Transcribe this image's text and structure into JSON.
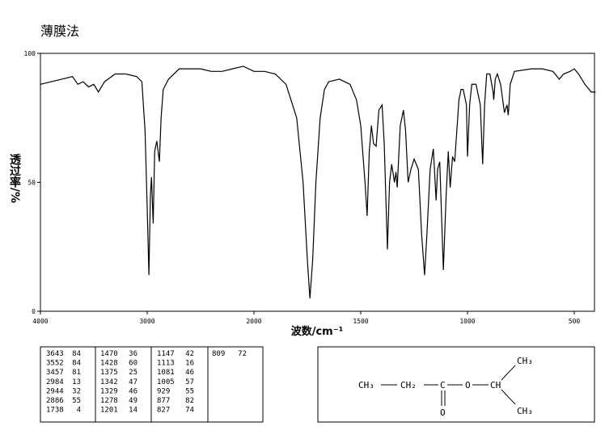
{
  "chart_data": {
    "type": "line",
    "title": "薄膜法",
    "x_label": "波数/cm⁻¹",
    "y_label": "透过率/%",
    "color": "#000000",
    "x": [
      4000,
      3900,
      3800,
      3700,
      3650,
      3600,
      3550,
      3500,
      3457,
      3400,
      3300,
      3200,
      3100,
      3050,
      3020,
      3000,
      2984,
      2970,
      2960,
      2944,
      2930,
      2910,
      2886,
      2870,
      2850,
      2800,
      2750,
      2700,
      2600,
      2500,
      2400,
      2300,
      2200,
      2100,
      2000,
      1950,
      1900,
      1850,
      1800,
      1770,
      1750,
      1738,
      1725,
      1710,
      1690,
      1670,
      1650,
      1600,
      1550,
      1520,
      1500,
      1480,
      1470,
      1460,
      1450,
      1440,
      1428,
      1415,
      1400,
      1390,
      1375,
      1365,
      1355,
      1342,
      1335,
      1329,
      1315,
      1300,
      1290,
      1278,
      1265,
      1250,
      1230,
      1215,
      1201,
      1190,
      1175,
      1160,
      1147,
      1140,
      1130,
      1113,
      1100,
      1090,
      1081,
      1070,
      1060,
      1050,
      1040,
      1030,
      1020,
      1005,
      1000,
      990,
      980,
      960,
      940,
      929,
      920,
      910,
      895,
      880,
      877,
      870,
      860,
      845,
      827,
      815,
      809,
      800,
      780,
      700,
      650,
      600,
      570,
      550,
      520,
      500,
      480,
      450,
      420,
      400
    ],
    "values": [
      88,
      89,
      90,
      91,
      88,
      89,
      87,
      88,
      85,
      89,
      92,
      92,
      91,
      89,
      70,
      40,
      14,
      45,
      52,
      34,
      62,
      66,
      58,
      75,
      86,
      90,
      92,
      94,
      94,
      94,
      93,
      93,
      94,
      95,
      93,
      93,
      92,
      88,
      75,
      50,
      20,
      5,
      20,
      50,
      75,
      86,
      89,
      90,
      88,
      82,
      72,
      50,
      37,
      62,
      72,
      65,
      64,
      78,
      80,
      65,
      24,
      50,
      57,
      50,
      54,
      48,
      72,
      78,
      70,
      50,
      55,
      59,
      55,
      30,
      14,
      30,
      55,
      63,
      43,
      55,
      58,
      16,
      45,
      62,
      48,
      60,
      58,
      70,
      82,
      86,
      86,
      80,
      60,
      80,
      88,
      88,
      80,
      57,
      80,
      92,
      92,
      85,
      82,
      90,
      92,
      88,
      77,
      80,
      76,
      88,
      93,
      94,
      94,
      93,
      90,
      92,
      93,
      94,
      92,
      88,
      85,
      85
    ],
    "xlim": [
      4000,
      400
    ],
    "ylim": [
      0,
      100
    ],
    "xticks": [
      4000,
      3000,
      2000,
      1500,
      1000,
      500
    ],
    "yticks": [
      0,
      50,
      100
    ]
  },
  "peak_table": {
    "rows": [
      [
        3643,
        84
      ],
      [
        3552,
        84
      ],
      [
        3457,
        81
      ],
      [
        2984,
        13
      ],
      [
        2944,
        32
      ],
      [
        2886,
        55
      ],
      [
        1738,
        4
      ],
      [
        1470,
        36
      ],
      [
        1428,
        60
      ],
      [
        1375,
        25
      ],
      [
        1342,
        47
      ],
      [
        1329,
        46
      ],
      [
        1278,
        49
      ],
      [
        1201,
        14
      ],
      [
        1147,
        42
      ],
      [
        1113,
        16
      ],
      [
        1081,
        46
      ],
      [
        1005,
        57
      ],
      [
        929,
        55
      ],
      [
        877,
        82
      ],
      [
        827,
        74
      ],
      [
        809,
        72
      ]
    ]
  },
  "structure": {
    "labels": [
      "CH₃",
      "CH₂",
      "C",
      "O",
      "CH",
      "CH₃",
      "CH₃",
      "O"
    ]
  }
}
